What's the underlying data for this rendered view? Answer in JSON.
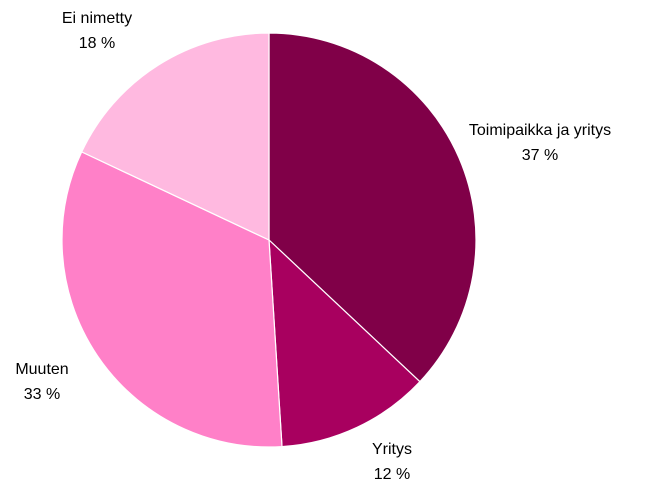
{
  "chart_data": {
    "type": "pie",
    "categories": [
      "Toimipaikka ja yritys",
      "Yritys",
      "Muuten",
      "Ei nimetty"
    ],
    "values": [
      37,
      12,
      33,
      18
    ],
    "value_labels": [
      "37 %",
      "12 %",
      "33 %",
      "18 %"
    ],
    "colors": [
      "#800048",
      "#a8005f",
      "#ff80c8",
      "#ffb9e0"
    ]
  }
}
